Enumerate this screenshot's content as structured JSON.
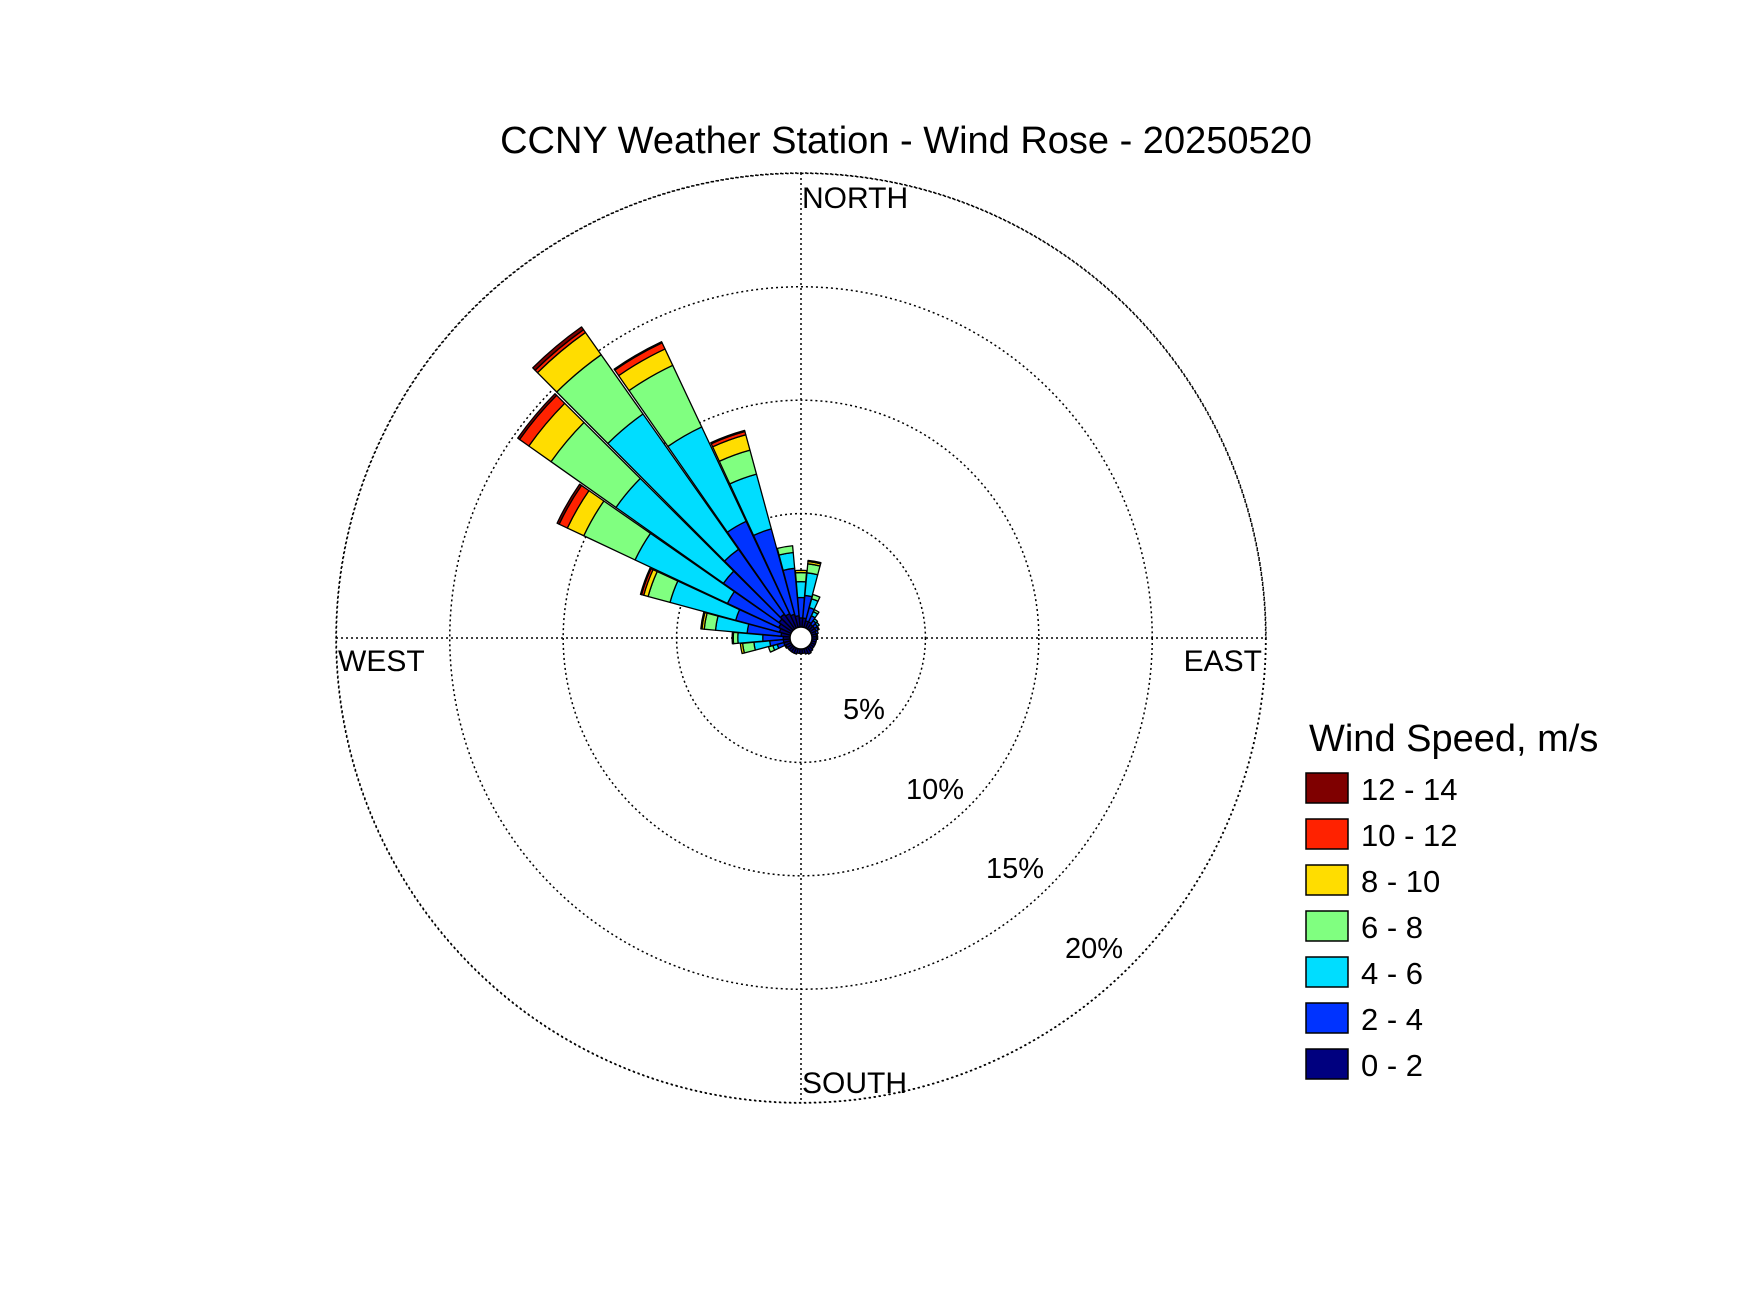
{
  "chart_data": {
    "type": "windrose",
    "title": "CCNY Weather Station - Wind Rose - 20250520",
    "directions_labels": {
      "north": "NORTH",
      "east": "EAST",
      "south": "SOUTH",
      "west": "WEST"
    },
    "radial_unit": "%",
    "radial_ticks": [
      5,
      10,
      15,
      20
    ],
    "radial_tick_labels": [
      "5%",
      "10%",
      "15%",
      "20%"
    ],
    "radial_max": 20.5,
    "legend_title": "Wind Speed, m/s",
    "legend_position": "right",
    "speed_bins": [
      {
        "label": "0 - 2",
        "color": "#00007f"
      },
      {
        "label": "2 - 4",
        "color": "#0033ff"
      },
      {
        "label": "4 - 6",
        "color": "#00ddff"
      },
      {
        "label": "6 - 8",
        "color": "#80ff80"
      },
      {
        "label": "8 - 10",
        "color": "#ffdd00"
      },
      {
        "label": "10 - 12",
        "color": "#ff2200"
      },
      {
        "label": "12 - 14",
        "color": "#7f0000"
      }
    ],
    "sector_width_deg": 10,
    "sectors": [
      {
        "direction_deg": 0,
        "values": [
          0.4,
          0.9,
          0.7,
          0.4,
          0.1,
          0,
          0
        ]
      },
      {
        "direction_deg": 10,
        "values": [
          0.4,
          1.0,
          1.0,
          0.4,
          0.1,
          0.05,
          0
        ]
      },
      {
        "direction_deg": 20,
        "values": [
          0.3,
          0.6,
          0.4,
          0.2,
          0,
          0,
          0
        ]
      },
      {
        "direction_deg": 30,
        "values": [
          0.3,
          0.3,
          0.2,
          0.1,
          0,
          0,
          0
        ]
      },
      {
        "direction_deg": 40,
        "values": [
          0.25,
          0.2,
          0.1,
          0,
          0,
          0,
          0
        ]
      },
      {
        "direction_deg": 50,
        "values": [
          0.25,
          0.15,
          0.1,
          0,
          0,
          0,
          0
        ]
      },
      {
        "direction_deg": 60,
        "values": [
          0.25,
          0.1,
          0.05,
          0,
          0,
          0,
          0
        ]
      },
      {
        "direction_deg": 70,
        "values": [
          0.2,
          0.1,
          0,
          0,
          0,
          0,
          0
        ]
      },
      {
        "direction_deg": 80,
        "values": [
          0.2,
          0.05,
          0,
          0,
          0,
          0,
          0
        ]
      },
      {
        "direction_deg": 90,
        "values": [
          0.2,
          0.05,
          0,
          0,
          0,
          0,
          0
        ]
      },
      {
        "direction_deg": 100,
        "values": [
          0.2,
          0,
          0,
          0,
          0,
          0,
          0
        ]
      },
      {
        "direction_deg": 110,
        "values": [
          0.2,
          0,
          0,
          0,
          0,
          0,
          0
        ]
      },
      {
        "direction_deg": 120,
        "values": [
          0.2,
          0,
          0,
          0,
          0,
          0,
          0
        ]
      },
      {
        "direction_deg": 130,
        "values": [
          0.2,
          0,
          0,
          0,
          0,
          0,
          0
        ]
      },
      {
        "direction_deg": 140,
        "values": [
          0.25,
          0,
          0,
          0,
          0,
          0,
          0
        ]
      },
      {
        "direction_deg": 150,
        "values": [
          0.3,
          0,
          0,
          0,
          0,
          0,
          0
        ]
      },
      {
        "direction_deg": 160,
        "values": [
          0.25,
          0,
          0,
          0,
          0,
          0,
          0
        ]
      },
      {
        "direction_deg": 170,
        "values": [
          0.2,
          0,
          0,
          0,
          0,
          0,
          0
        ]
      },
      {
        "direction_deg": 180,
        "values": [
          0.2,
          0,
          0,
          0,
          0,
          0,
          0
        ]
      },
      {
        "direction_deg": 190,
        "values": [
          0.2,
          0,
          0,
          0,
          0,
          0,
          0
        ]
      },
      {
        "direction_deg": 200,
        "values": [
          0.25,
          0,
          0,
          0,
          0,
          0,
          0
        ]
      },
      {
        "direction_deg": 210,
        "values": [
          0.25,
          0,
          0,
          0,
          0,
          0,
          0
        ]
      },
      {
        "direction_deg": 220,
        "values": [
          0.25,
          0,
          0,
          0,
          0,
          0,
          0
        ]
      },
      {
        "direction_deg": 230,
        "values": [
          0.25,
          0,
          0,
          0,
          0,
          0,
          0
        ]
      },
      {
        "direction_deg": 240,
        "values": [
          0.25,
          0.05,
          0,
          0,
          0,
          0,
          0
        ]
      },
      {
        "direction_deg": 250,
        "values": [
          0.3,
          0.3,
          0.2,
          0.2,
          0,
          0,
          0
        ]
      },
      {
        "direction_deg": 260,
        "values": [
          0.3,
          0.6,
          0.7,
          0.5,
          0.1,
          0,
          0
        ]
      },
      {
        "direction_deg": 270,
        "values": [
          0.3,
          0.9,
          1.1,
          0.2,
          0.05,
          0,
          0
        ]
      },
      {
        "direction_deg": 280,
        "values": [
          0.4,
          1.5,
          1.4,
          0.5,
          0.1,
          0.05,
          0
        ]
      },
      {
        "direction_deg": 290,
        "values": [
          0.5,
          2.0,
          3.0,
          1.0,
          0.2,
          0.1,
          0.05
        ]
      },
      {
        "direction_deg": 300,
        "values": [
          0.6,
          2.5,
          4.5,
          2.5,
          0.8,
          0.4,
          0.1
        ]
      },
      {
        "direction_deg": 310,
        "values": [
          0.7,
          3.0,
          5.8,
          3.5,
          1.2,
          0.5,
          0.1
        ]
      },
      {
        "direction_deg": 320,
        "values": [
          0.8,
          3.5,
          7.3,
          3.2,
          1.2,
          0.15,
          0.15
        ]
      },
      {
        "direction_deg": 330,
        "values": [
          0.7,
          4.5,
          4.6,
          3.0,
          0.8,
          0.3,
          0.05
        ]
      },
      {
        "direction_deg": 340,
        "values": [
          0.6,
          3.9,
          2.5,
          1.1,
          0.7,
          0.15,
          0.05
        ]
      },
      {
        "direction_deg": 350,
        "values": [
          0.5,
          2.1,
          0.7,
          0.3,
          0,
          0,
          0
        ]
      }
    ]
  }
}
